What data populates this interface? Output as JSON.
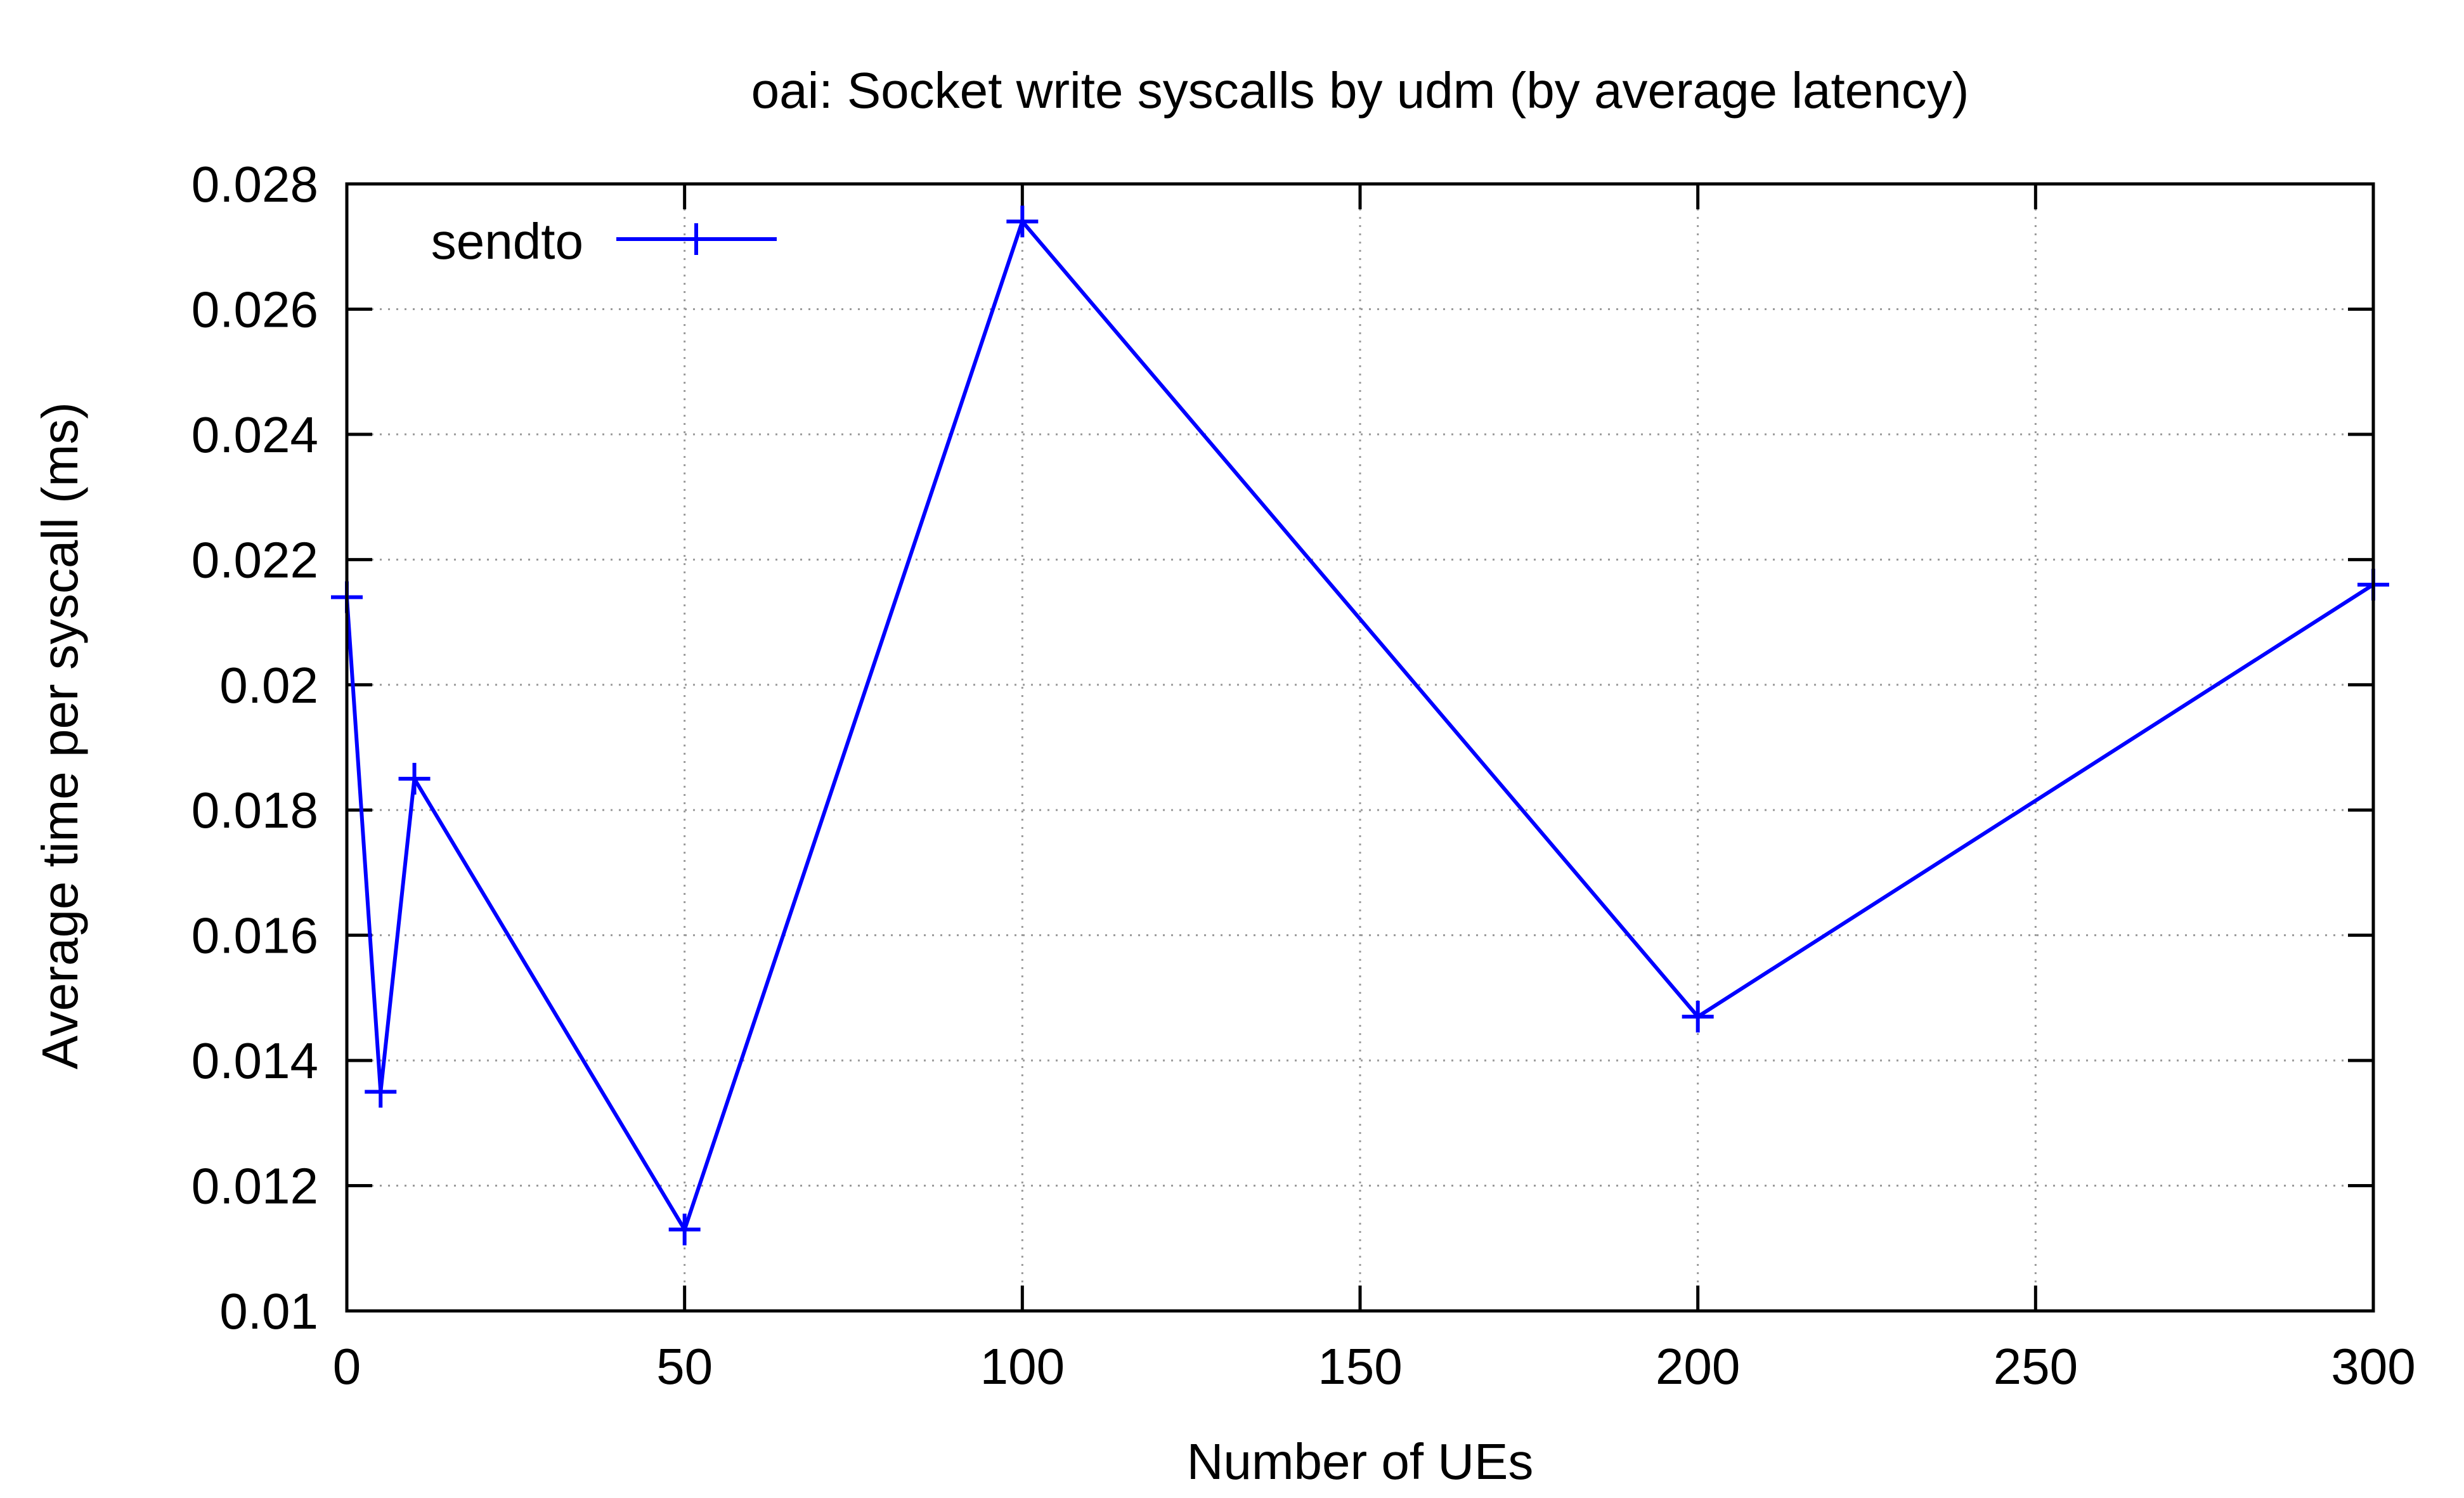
{
  "chart_data": {
    "type": "line",
    "title": "oai: Socket write syscalls by udm (by average latency)",
    "xlabel": "Number of UEs",
    "ylabel": "Average time per syscall (ms)",
    "xlim": [
      0,
      300
    ],
    "ylim": [
      0.01,
      0.028
    ],
    "xticks": [
      0,
      50,
      100,
      150,
      200,
      250,
      300
    ],
    "xtick_labels": [
      "0",
      "50",
      "100",
      "150",
      "200",
      "250",
      "300"
    ],
    "yticks": [
      0.01,
      0.012,
      0.014,
      0.016,
      0.018,
      0.02,
      0.022,
      0.024,
      0.026,
      0.028
    ],
    "ytick_labels": [
      "0.01",
      "0.012",
      "0.014",
      "0.016",
      "0.018",
      "0.02",
      "0.022",
      "0.024",
      "0.026",
      "0.028"
    ],
    "grid": true,
    "legend_position": "top-left",
    "series": [
      {
        "name": "sendto",
        "color": "#0000ff",
        "marker": "plus",
        "x": [
          0,
          5,
          10,
          50,
          100,
          200,
          300
        ],
        "y": [
          0.0214,
          0.0135,
          0.0185,
          0.0113,
          0.0274,
          0.0147,
          0.0216
        ]
      }
    ]
  }
}
